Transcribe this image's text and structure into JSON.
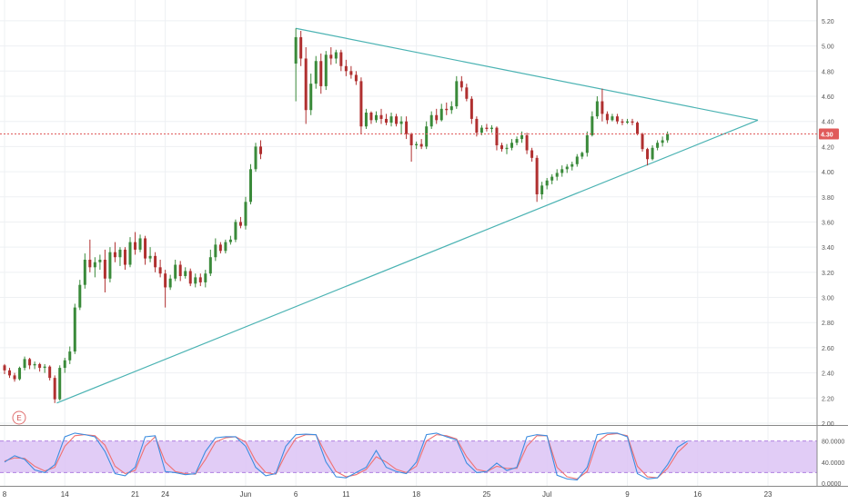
{
  "chart_data": {
    "type": "candlestick",
    "x_ticks": [
      {
        "label": "8",
        "day": 0
      },
      {
        "label": "14",
        "day": 6
      },
      {
        "label": "21",
        "day": 13
      },
      {
        "label": "24",
        "day": 16
      },
      {
        "label": "Jun",
        "day": 24
      },
      {
        "label": "6",
        "day": 29
      },
      {
        "label": "11",
        "day": 34
      },
      {
        "label": "18",
        "day": 41
      },
      {
        "label": "25",
        "day": 48
      },
      {
        "label": "Jul",
        "day": 54
      },
      {
        "label": "9",
        "day": 62
      },
      {
        "label": "16",
        "day": 69
      },
      {
        "label": "23",
        "day": 76
      }
    ],
    "y_ticks": [
      "2.00",
      "2.20",
      "2.40",
      "2.60",
      "2.80",
      "3.00",
      "3.20",
      "3.40",
      "3.60",
      "3.80",
      "4.00",
      "4.20",
      "4.40",
      "4.60",
      "4.80",
      "5.00",
      "5.20"
    ],
    "ylim": [
      2.0,
      5.25
    ],
    "xlim_days": [
      0,
      79
    ],
    "last_price": {
      "value": 4.3,
      "label": "4.30",
      "color": "#e05a5a"
    },
    "up_color": "#3a8a3a",
    "down_color": "#b03030",
    "trend_color": "#4bb3b3",
    "event_badge": "E",
    "trendlines": [
      {
        "name": "upper",
        "from": [
          29.0,
          5.14
        ],
        "to": [
          75.0,
          4.41
        ]
      },
      {
        "name": "lower",
        "from": [
          5.2,
          2.16
        ],
        "to": [
          75.0,
          4.41
        ]
      }
    ],
    "candles": [
      [
        0.0,
        2.46,
        2.47,
        2.39,
        2.42
      ],
      [
        0.5,
        2.42,
        2.44,
        2.36,
        2.38
      ],
      [
        1.0,
        2.38,
        2.4,
        2.33,
        2.35
      ],
      [
        1.5,
        2.35,
        2.45,
        2.34,
        2.44
      ],
      [
        2.0,
        2.44,
        2.53,
        2.42,
        2.51
      ],
      [
        2.5,
        2.51,
        2.52,
        2.43,
        2.46
      ],
      [
        3.0,
        2.46,
        2.49,
        2.43,
        2.47
      ],
      [
        3.5,
        2.47,
        2.48,
        2.41,
        2.44
      ],
      [
        4.0,
        2.44,
        2.47,
        2.4,
        2.45
      ],
      [
        4.5,
        2.45,
        2.46,
        2.34,
        2.36
      ],
      [
        5.0,
        2.36,
        2.38,
        2.16,
        2.19
      ],
      [
        5.5,
        2.19,
        2.46,
        2.18,
        2.44
      ],
      [
        6.0,
        2.44,
        2.52,
        2.4,
        2.5
      ],
      [
        6.5,
        2.5,
        2.61,
        2.47,
        2.57
      ],
      [
        7.0,
        2.57,
        2.95,
        2.55,
        2.92
      ],
      [
        7.5,
        2.92,
        3.14,
        2.9,
        3.1
      ],
      [
        8.0,
        3.1,
        3.35,
        3.07,
        3.3
      ],
      [
        8.5,
        3.3,
        3.46,
        3.2,
        3.24
      ],
      [
        9.0,
        3.24,
        3.32,
        3.16,
        3.28
      ],
      [
        9.5,
        3.28,
        3.34,
        3.22,
        3.3
      ],
      [
        10.0,
        3.3,
        3.38,
        3.04,
        3.15
      ],
      [
        10.5,
        3.15,
        3.4,
        3.12,
        3.36
      ],
      [
        11.0,
        3.36,
        3.44,
        3.28,
        3.32
      ],
      [
        11.5,
        3.32,
        3.4,
        3.25,
        3.38
      ],
      [
        12.0,
        3.38,
        3.4,
        3.22,
        3.26
      ],
      [
        12.5,
        3.26,
        3.48,
        3.24,
        3.44
      ],
      [
        13.0,
        3.44,
        3.52,
        3.34,
        3.38
      ],
      [
        13.5,
        3.38,
        3.5,
        3.36,
        3.47
      ],
      [
        14.0,
        3.47,
        3.49,
        3.26,
        3.31
      ],
      [
        14.5,
        3.31,
        3.4,
        3.28,
        3.33
      ],
      [
        15.0,
        3.33,
        3.36,
        3.2,
        3.24
      ],
      [
        15.5,
        3.24,
        3.3,
        3.16,
        3.19
      ],
      [
        16.0,
        3.19,
        3.22,
        2.92,
        3.08
      ],
      [
        16.5,
        3.08,
        3.18,
        3.06,
        3.15
      ],
      [
        17.0,
        3.15,
        3.3,
        3.13,
        3.26
      ],
      [
        17.5,
        3.26,
        3.29,
        3.13,
        3.17
      ],
      [
        18.0,
        3.17,
        3.24,
        3.15,
        3.21
      ],
      [
        18.5,
        3.21,
        3.23,
        3.09,
        3.11
      ],
      [
        19.0,
        3.11,
        3.19,
        3.08,
        3.16
      ],
      [
        19.5,
        3.16,
        3.19,
        3.09,
        3.12
      ],
      [
        20.0,
        3.12,
        3.22,
        3.08,
        3.19
      ],
      [
        20.5,
        3.19,
        3.38,
        3.17,
        3.32
      ],
      [
        21.0,
        3.32,
        3.47,
        3.29,
        3.42
      ],
      [
        21.5,
        3.42,
        3.44,
        3.35,
        3.37
      ],
      [
        22.0,
        3.37,
        3.46,
        3.35,
        3.44
      ],
      [
        22.5,
        3.44,
        3.49,
        3.42,
        3.46
      ],
      [
        23.0,
        3.46,
        3.62,
        3.44,
        3.6
      ],
      [
        23.5,
        3.6,
        3.64,
        3.55,
        3.57
      ],
      [
        24.0,
        3.57,
        3.8,
        3.54,
        3.76
      ],
      [
        24.5,
        3.76,
        4.06,
        3.74,
        4.02
      ],
      [
        25.0,
        4.02,
        4.23,
        4.0,
        4.2
      ],
      [
        25.5,
        4.2,
        4.25,
        4.1,
        4.14
      ],
      [
        29.0,
        4.86,
        5.14,
        4.56,
        5.07
      ],
      [
        29.5,
        5.07,
        5.12,
        4.84,
        4.9
      ],
      [
        30.0,
        4.9,
        4.99,
        4.38,
        4.49
      ],
      [
        30.5,
        4.49,
        4.78,
        4.45,
        4.7
      ],
      [
        31.0,
        4.7,
        4.92,
        4.66,
        4.88
      ],
      [
        31.5,
        4.88,
        4.94,
        4.62,
        4.68
      ],
      [
        32.0,
        4.68,
        4.96,
        4.65,
        4.93
      ],
      [
        32.5,
        4.93,
        4.99,
        4.85,
        4.9
      ],
      [
        33.0,
        4.9,
        4.97,
        4.86,
        4.95
      ],
      [
        33.5,
        4.95,
        4.97,
        4.8,
        4.84
      ],
      [
        34.0,
        4.84,
        4.89,
        4.76,
        4.8
      ],
      [
        34.5,
        4.8,
        4.84,
        4.74,
        4.77
      ],
      [
        35.0,
        4.77,
        4.8,
        4.69,
        4.72
      ],
      [
        35.5,
        4.72,
        4.75,
        4.3,
        4.36
      ],
      [
        36.0,
        4.36,
        4.5,
        4.34,
        4.47
      ],
      [
        36.5,
        4.47,
        4.48,
        4.38,
        4.41
      ],
      [
        37.0,
        4.41,
        4.48,
        4.39,
        4.45
      ],
      [
        37.5,
        4.45,
        4.5,
        4.38,
        4.42
      ],
      [
        38.0,
        4.42,
        4.46,
        4.37,
        4.39
      ],
      [
        38.5,
        4.39,
        4.47,
        4.36,
        4.44
      ],
      [
        39.0,
        4.44,
        4.46,
        4.36,
        4.38
      ],
      [
        39.5,
        4.38,
        4.44,
        4.3,
        4.4
      ],
      [
        40.0,
        4.4,
        4.44,
        4.26,
        4.3
      ],
      [
        40.5,
        4.3,
        4.31,
        4.08,
        4.21
      ],
      [
        41.0,
        4.21,
        4.24,
        4.18,
        4.22
      ],
      [
        41.5,
        4.22,
        4.26,
        4.18,
        4.2
      ],
      [
        42.0,
        4.2,
        4.4,
        4.18,
        4.36
      ],
      [
        42.5,
        4.36,
        4.48,
        4.34,
        4.45
      ],
      [
        43.0,
        4.45,
        4.5,
        4.38,
        4.41
      ],
      [
        43.5,
        4.41,
        4.54,
        4.4,
        4.5
      ],
      [
        44.0,
        4.5,
        4.55,
        4.45,
        4.49
      ],
      [
        44.5,
        4.49,
        4.56,
        4.46,
        4.52
      ],
      [
        45.0,
        4.52,
        4.76,
        4.5,
        4.72
      ],
      [
        45.5,
        4.72,
        4.76,
        4.64,
        4.67
      ],
      [
        46.0,
        4.67,
        4.7,
        4.56,
        4.58
      ],
      [
        46.5,
        4.58,
        4.6,
        4.38,
        4.42
      ],
      [
        47.0,
        4.42,
        4.44,
        4.28,
        4.31
      ],
      [
        47.5,
        4.31,
        4.37,
        4.29,
        4.35
      ],
      [
        48.0,
        4.35,
        4.38,
        4.32,
        4.34
      ],
      [
        48.5,
        4.34,
        4.37,
        4.31,
        4.35
      ],
      [
        49.0,
        4.35,
        4.36,
        4.17,
        4.21
      ],
      [
        49.5,
        4.21,
        4.23,
        4.16,
        4.18
      ],
      [
        50.0,
        4.18,
        4.22,
        4.14,
        4.19
      ],
      [
        50.5,
        4.19,
        4.26,
        4.17,
        4.23
      ],
      [
        51.0,
        4.23,
        4.28,
        4.21,
        4.26
      ],
      [
        51.5,
        4.26,
        4.32,
        4.23,
        4.29
      ],
      [
        52.0,
        4.29,
        4.31,
        4.14,
        4.17
      ],
      [
        52.5,
        4.17,
        4.19,
        4.08,
        4.11
      ],
      [
        53.0,
        4.11,
        4.13,
        3.76,
        3.82
      ],
      [
        53.5,
        3.82,
        3.92,
        3.78,
        3.89
      ],
      [
        54.0,
        3.89,
        3.95,
        3.86,
        3.93
      ],
      [
        54.5,
        3.93,
        3.98,
        3.9,
        3.96
      ],
      [
        55.0,
        3.96,
        4.02,
        3.93,
        3.99
      ],
      [
        55.5,
        3.99,
        4.05,
        3.96,
        4.02
      ],
      [
        56.0,
        4.02,
        4.06,
        3.99,
        4.04
      ],
      [
        56.5,
        4.04,
        4.08,
        4.01,
        4.06
      ],
      [
        57.0,
        4.06,
        4.14,
        4.04,
        4.12
      ],
      [
        57.5,
        4.12,
        4.16,
        4.1,
        4.15
      ],
      [
        58.0,
        4.15,
        4.32,
        4.12,
        4.29
      ],
      [
        58.5,
        4.29,
        4.48,
        4.28,
        4.44
      ],
      [
        59.0,
        4.44,
        4.6,
        4.42,
        4.56
      ],
      [
        59.5,
        4.56,
        4.66,
        4.4,
        4.46
      ],
      [
        60.0,
        4.46,
        4.48,
        4.38,
        4.41
      ],
      [
        60.5,
        4.41,
        4.46,
        4.4,
        4.44
      ],
      [
        61.0,
        4.44,
        4.46,
        4.38,
        4.4
      ],
      [
        61.5,
        4.4,
        4.42,
        4.37,
        4.39
      ],
      [
        62.0,
        4.39,
        4.42,
        4.38,
        4.4
      ],
      [
        62.5,
        4.4,
        4.42,
        4.37,
        4.39
      ],
      [
        63.0,
        4.39,
        4.4,
        4.29,
        4.3
      ],
      [
        63.5,
        4.3,
        4.31,
        4.16,
        4.18
      ],
      [
        64.0,
        4.18,
        4.19,
        4.05,
        4.1
      ],
      [
        64.5,
        4.1,
        4.21,
        4.09,
        4.19
      ],
      [
        65.0,
        4.19,
        4.25,
        4.17,
        4.23
      ],
      [
        65.5,
        4.23,
        4.28,
        4.2,
        4.25
      ],
      [
        66.0,
        4.25,
        4.32,
        4.23,
        4.3
      ]
    ],
    "oscillator": {
      "yticks": [
        "0.0000",
        "40.0000",
        "80.0000"
      ],
      "ylim": [
        0,
        100
      ],
      "band": [
        20,
        80
      ],
      "k_color": "#3c8de0",
      "d_color": "#f07070",
      "band_fill": "#dcc3f5",
      "band_line": "#b080e0",
      "k_values": [
        [
          0,
          40
        ],
        [
          1,
          52
        ],
        [
          2,
          45
        ],
        [
          3,
          25
        ],
        [
          4,
          20
        ],
        [
          5,
          35
        ],
        [
          6,
          88
        ],
        [
          7,
          95
        ],
        [
          8,
          92
        ],
        [
          9,
          88
        ],
        [
          10,
          60
        ],
        [
          11,
          18
        ],
        [
          12,
          14
        ],
        [
          13,
          30
        ],
        [
          14,
          88
        ],
        [
          15,
          90
        ],
        [
          16,
          22
        ],
        [
          17,
          20
        ],
        [
          18,
          16
        ],
        [
          19,
          18
        ],
        [
          20,
          60
        ],
        [
          21,
          86
        ],
        [
          22,
          88
        ],
        [
          23,
          88
        ],
        [
          24,
          70
        ],
        [
          25,
          30
        ],
        [
          26,
          14
        ],
        [
          27,
          18
        ],
        [
          28,
          70
        ],
        [
          29,
          92
        ],
        [
          30,
          93
        ],
        [
          31,
          92
        ],
        [
          32,
          40
        ],
        [
          33,
          12
        ],
        [
          34,
          10
        ],
        [
          35,
          20
        ],
        [
          36,
          30
        ],
        [
          37,
          62
        ],
        [
          38,
          30
        ],
        [
          39,
          22
        ],
        [
          40,
          18
        ],
        [
          41,
          40
        ],
        [
          42,
          92
        ],
        [
          43,
          95
        ],
        [
          44,
          88
        ],
        [
          45,
          82
        ],
        [
          46,
          38
        ],
        [
          47,
          20
        ],
        [
          48,
          22
        ],
        [
          49,
          38
        ],
        [
          50,
          24
        ],
        [
          51,
          30
        ],
        [
          52,
          88
        ],
        [
          53,
          92
        ],
        [
          54,
          90
        ],
        [
          55,
          15
        ],
        [
          56,
          8
        ],
        [
          57,
          6
        ],
        [
          58,
          30
        ],
        [
          59,
          92
        ],
        [
          60,
          95
        ],
        [
          61,
          95
        ],
        [
          62,
          88
        ],
        [
          63,
          18
        ],
        [
          64,
          8
        ],
        [
          65,
          10
        ],
        [
          66,
          35
        ],
        [
          67,
          68
        ],
        [
          68,
          80
        ]
      ],
      "d_values": [
        [
          0,
          42
        ],
        [
          1,
          48
        ],
        [
          2,
          47
        ],
        [
          3,
          32
        ],
        [
          4,
          23
        ],
        [
          5,
          30
        ],
        [
          6,
          70
        ],
        [
          7,
          90
        ],
        [
          8,
          92
        ],
        [
          9,
          90
        ],
        [
          10,
          72
        ],
        [
          11,
          32
        ],
        [
          12,
          18
        ],
        [
          13,
          24
        ],
        [
          14,
          70
        ],
        [
          15,
          88
        ],
        [
          16,
          40
        ],
        [
          17,
          22
        ],
        [
          18,
          18
        ],
        [
          19,
          17
        ],
        [
          20,
          45
        ],
        [
          21,
          78
        ],
        [
          22,
          86
        ],
        [
          23,
          88
        ],
        [
          24,
          78
        ],
        [
          25,
          42
        ],
        [
          26,
          20
        ],
        [
          27,
          17
        ],
        [
          28,
          55
        ],
        [
          29,
          85
        ],
        [
          30,
          92
        ],
        [
          31,
          92
        ],
        [
          32,
          55
        ],
        [
          33,
          22
        ],
        [
          34,
          12
        ],
        [
          35,
          16
        ],
        [
          36,
          26
        ],
        [
          37,
          50
        ],
        [
          38,
          40
        ],
        [
          39,
          26
        ],
        [
          40,
          20
        ],
        [
          41,
          32
        ],
        [
          42,
          80
        ],
        [
          43,
          92
        ],
        [
          44,
          90
        ],
        [
          45,
          84
        ],
        [
          46,
          50
        ],
        [
          47,
          26
        ],
        [
          48,
          22
        ],
        [
          49,
          32
        ],
        [
          50,
          28
        ],
        [
          51,
          28
        ],
        [
          52,
          70
        ],
        [
          53,
          90
        ],
        [
          54,
          90
        ],
        [
          55,
          30
        ],
        [
          56,
          12
        ],
        [
          57,
          8
        ],
        [
          58,
          22
        ],
        [
          59,
          78
        ],
        [
          60,
          92
        ],
        [
          61,
          94
        ],
        [
          62,
          90
        ],
        [
          63,
          32
        ],
        [
          64,
          12
        ],
        [
          65,
          10
        ],
        [
          66,
          28
        ],
        [
          67,
          58
        ],
        [
          68,
          76
        ]
      ]
    }
  }
}
